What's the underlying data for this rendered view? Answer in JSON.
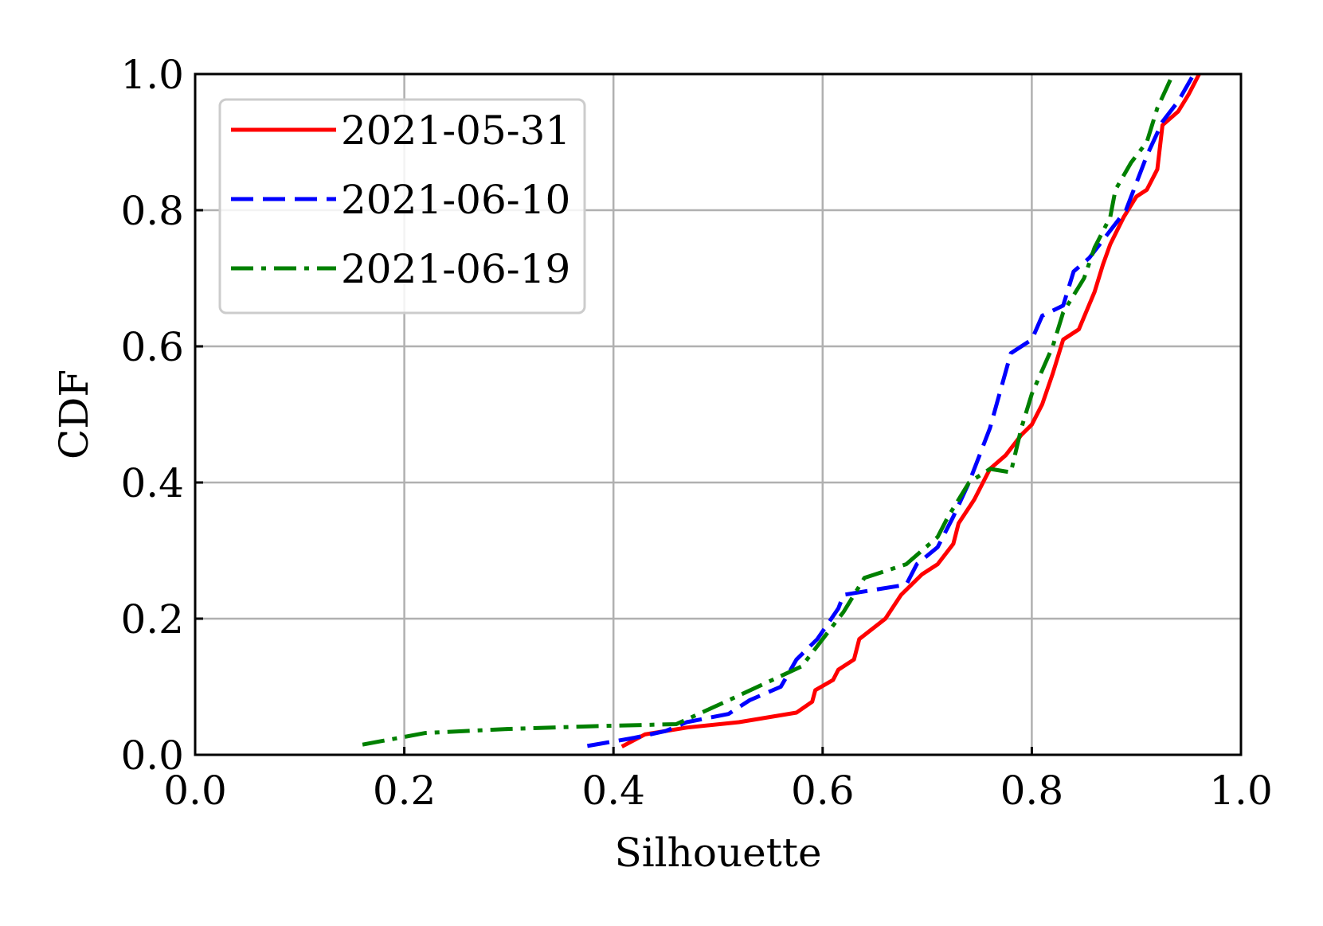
{
  "chart_data": {
    "type": "line",
    "xlabel": "Silhouette",
    "ylabel": "CDF",
    "xlim": [
      0.0,
      1.0
    ],
    "ylim": [
      0.0,
      1.0
    ],
    "xticks": [
      "0.0",
      "0.2",
      "0.4",
      "0.6",
      "0.8",
      "1.0"
    ],
    "yticks": [
      "0.0",
      "0.2",
      "0.4",
      "0.6",
      "0.8",
      "1.0"
    ],
    "grid": true,
    "legend_position": "top-left",
    "series": [
      {
        "name": "2021-05-31",
        "color": "#ff0000",
        "style": "solid",
        "points": [
          [
            0.408,
            0.012
          ],
          [
            0.43,
            0.03
          ],
          [
            0.47,
            0.04
          ],
          [
            0.52,
            0.048
          ],
          [
            0.575,
            0.062
          ],
          [
            0.59,
            0.078
          ],
          [
            0.593,
            0.095
          ],
          [
            0.61,
            0.11
          ],
          [
            0.615,
            0.125
          ],
          [
            0.63,
            0.14
          ],
          [
            0.635,
            0.17
          ],
          [
            0.66,
            0.2
          ],
          [
            0.675,
            0.235
          ],
          [
            0.695,
            0.265
          ],
          [
            0.71,
            0.28
          ],
          [
            0.725,
            0.31
          ],
          [
            0.73,
            0.34
          ],
          [
            0.745,
            0.375
          ],
          [
            0.76,
            0.42
          ],
          [
            0.775,
            0.44
          ],
          [
            0.79,
            0.47
          ],
          [
            0.8,
            0.485
          ],
          [
            0.81,
            0.515
          ],
          [
            0.82,
            0.56
          ],
          [
            0.83,
            0.61
          ],
          [
            0.845,
            0.625
          ],
          [
            0.86,
            0.68
          ],
          [
            0.868,
            0.72
          ],
          [
            0.875,
            0.75
          ],
          [
            0.888,
            0.79
          ],
          [
            0.9,
            0.82
          ],
          [
            0.91,
            0.83
          ],
          [
            0.92,
            0.86
          ],
          [
            0.925,
            0.925
          ],
          [
            0.94,
            0.945
          ],
          [
            0.95,
            0.97
          ],
          [
            0.96,
            1.0
          ]
        ]
      },
      {
        "name": "2021-06-10",
        "color": "#0000ff",
        "style": "dashed",
        "points": [
          [
            0.375,
            0.013
          ],
          [
            0.42,
            0.025
          ],
          [
            0.45,
            0.035
          ],
          [
            0.47,
            0.048
          ],
          [
            0.51,
            0.06
          ],
          [
            0.53,
            0.08
          ],
          [
            0.56,
            0.1
          ],
          [
            0.575,
            0.14
          ],
          [
            0.595,
            0.17
          ],
          [
            0.615,
            0.215
          ],
          [
            0.62,
            0.235
          ],
          [
            0.64,
            0.24
          ],
          [
            0.68,
            0.25
          ],
          [
            0.69,
            0.28
          ],
          [
            0.71,
            0.305
          ],
          [
            0.725,
            0.35
          ],
          [
            0.74,
            0.4
          ],
          [
            0.75,
            0.44
          ],
          [
            0.76,
            0.48
          ],
          [
            0.77,
            0.535
          ],
          [
            0.78,
            0.59
          ],
          [
            0.8,
            0.61
          ],
          [
            0.81,
            0.645
          ],
          [
            0.83,
            0.66
          ],
          [
            0.84,
            0.71
          ],
          [
            0.855,
            0.73
          ],
          [
            0.865,
            0.75
          ],
          [
            0.875,
            0.77
          ],
          [
            0.89,
            0.8
          ],
          [
            0.9,
            0.84
          ],
          [
            0.91,
            0.88
          ],
          [
            0.925,
            0.93
          ],
          [
            0.94,
            0.96
          ],
          [
            0.955,
            1.0
          ]
        ]
      },
      {
        "name": "2021-06-19",
        "color": "#008000",
        "style": "dashdot",
        "points": [
          [
            0.16,
            0.015
          ],
          [
            0.22,
            0.032
          ],
          [
            0.3,
            0.038
          ],
          [
            0.38,
            0.042
          ],
          [
            0.46,
            0.045
          ],
          [
            0.51,
            0.08
          ],
          [
            0.58,
            0.13
          ],
          [
            0.62,
            0.21
          ],
          [
            0.64,
            0.26
          ],
          [
            0.68,
            0.28
          ],
          [
            0.71,
            0.32
          ],
          [
            0.72,
            0.35
          ],
          [
            0.74,
            0.4
          ],
          [
            0.76,
            0.42
          ],
          [
            0.78,
            0.415
          ],
          [
            0.79,
            0.48
          ],
          [
            0.8,
            0.53
          ],
          [
            0.82,
            0.6
          ],
          [
            0.83,
            0.65
          ],
          [
            0.85,
            0.7
          ],
          [
            0.86,
            0.745
          ],
          [
            0.875,
            0.79
          ],
          [
            0.88,
            0.83
          ],
          [
            0.895,
            0.87
          ],
          [
            0.91,
            0.9
          ],
          [
            0.92,
            0.95
          ],
          [
            0.935,
            1.0
          ]
        ]
      }
    ]
  }
}
